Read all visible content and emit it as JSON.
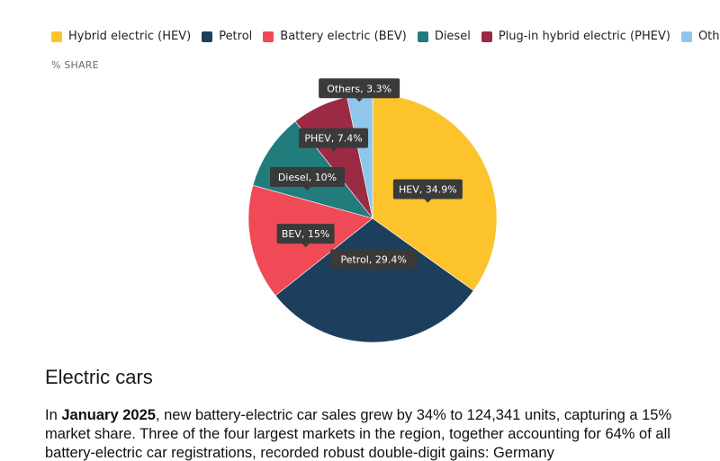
{
  "chart_data": {
    "type": "pie",
    "ylabel": "% SHARE",
    "legend": [
      {
        "key": "hev",
        "label": "Hybrid electric (HEV)",
        "color": "#fcc32c"
      },
      {
        "key": "petrol",
        "label": "Petrol",
        "color": "#1d3f5e"
      },
      {
        "key": "bev",
        "label": "Battery electric (BEV)",
        "color": "#ef4a55"
      },
      {
        "key": "diesel",
        "label": "Diesel",
        "color": "#227c7c"
      },
      {
        "key": "phev",
        "label": "Plug-in hybrid electric (PHEV)",
        "color": "#9b2a45"
      },
      {
        "key": "others",
        "label": "Others",
        "color": "#8ec6ec"
      }
    ],
    "slices": [
      {
        "key": "hev",
        "short_label": "HEV",
        "value": 34.9,
        "display": "HEV, 34.9%"
      },
      {
        "key": "petrol",
        "short_label": "Petrol",
        "value": 29.4,
        "display": "Petrol, 29.4%"
      },
      {
        "key": "bev",
        "short_label": "BEV",
        "value": 15,
        "display": "BEV, 15%"
      },
      {
        "key": "diesel",
        "short_label": "Diesel",
        "value": 10,
        "display": "Diesel, 10%"
      },
      {
        "key": "phev",
        "short_label": "PHEV",
        "value": 7.4,
        "display": "PHEV, 7.4%"
      },
      {
        "key": "others",
        "short_label": "Others",
        "value": 3.3,
        "display": "Others, 3.3%"
      }
    ]
  },
  "article": {
    "title": "Electric cars",
    "intro_bold": "January 2025",
    "intro_prefix": "In ",
    "intro_rest": ", new battery-electric car sales grew by 34% to 124,341 units, capturing a 15% market share. Three of the four largest markets in the region, together accounting for 64% of all battery-electric car registrations, recorded robust double-digit gains: Germany"
  },
  "colors": {
    "tooltip_bg": "#3a3a3a"
  }
}
